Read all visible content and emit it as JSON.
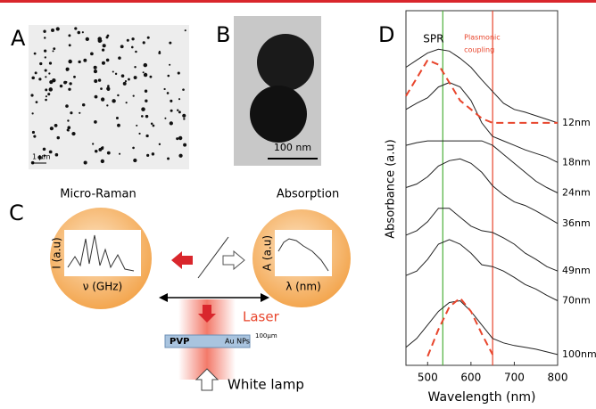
{
  "panels": {
    "a": {
      "label": "A",
      "scale_bar": "1 µm"
    },
    "b": {
      "label": "B",
      "scale_bar": "100 nm"
    },
    "c": {
      "label": "C",
      "raman": {
        "title": "Micro-Raman",
        "y_label": "I (a.u)",
        "x_label": "ν (GHz)"
      },
      "absorption": {
        "title": "Absorption",
        "y_label": "A (a.u)",
        "x_label": "λ (nm)"
      },
      "laser": "Laser",
      "pvp": "PVP",
      "nps": "Au NPs",
      "thickness": "100µm",
      "lamp": "White lamp"
    },
    "d": {
      "label": "D"
    }
  },
  "chart_data": {
    "type": "line",
    "x_label": "Wavelength (nm)",
    "y_label": "Absorbance (a.u)",
    "x": [
      450,
      475,
      500,
      525,
      550,
      575,
      600,
      625,
      650,
      675,
      700,
      725,
      750,
      775,
      800
    ],
    "xlim": [
      450,
      800
    ],
    "xticks": [
      500,
      600,
      700,
      800
    ],
    "ylim": [
      0,
      395
    ],
    "series": [
      {
        "name": "12nm",
        "color": "#222222",
        "values": [
          332,
          340,
          348,
          352,
          350,
          342,
          332,
          318,
          305,
          292,
          285,
          282,
          278,
          274,
          270
        ]
      },
      {
        "name": "18nm",
        "color": "#222222",
        "values": [
          285,
          292,
          298,
          310,
          315,
          310,
          295,
          270,
          255,
          250,
          245,
          240,
          236,
          232,
          226
        ]
      },
      {
        "name": "24nm",
        "color": "#222222",
        "values": [
          245,
          248,
          250,
          250,
          250,
          250,
          250,
          250,
          245,
          235,
          225,
          215,
          205,
          198,
          192
        ]
      },
      {
        "name": "36nm",
        "color": "#222222",
        "values": [
          198,
          202,
          210,
          222,
          228,
          230,
          225,
          215,
          200,
          190,
          182,
          178,
          172,
          165,
          158
        ]
      },
      {
        "name": "49nm",
        "color": "#222222",
        "values": [
          145,
          150,
          160,
          175,
          175,
          165,
          155,
          150,
          148,
          142,
          135,
          125,
          118,
          110,
          105
        ]
      },
      {
        "name": "70nm",
        "color": "#222222",
        "values": [
          100,
          105,
          118,
          135,
          140,
          135,
          125,
          112,
          110,
          105,
          98,
          90,
          85,
          78,
          72
        ]
      },
      {
        "name": "100nm",
        "color": "#222222",
        "values": [
          20,
          30,
          45,
          60,
          70,
          72,
          60,
          45,
          30,
          25,
          22,
          20,
          18,
          15,
          12
        ]
      },
      {
        "color": "#e8452c",
        "dashed": true,
        "values": [
          300,
          320,
          340,
          335,
          315,
          295,
          285,
          275,
          270,
          270,
          270,
          270,
          270,
          270,
          270
        ]
      },
      {
        "color": "#e8452c",
        "dashed": true,
        "values": [
          null,
          null,
          10,
          40,
          65,
          75,
          60,
          35,
          12,
          null,
          null,
          null,
          null,
          null,
          null
        ]
      }
    ],
    "markers": [
      {
        "x": 535,
        "label": "SPR",
        "color": "#4caf3a"
      },
      {
        "x": 650,
        "lines": [
          "Plasmonic",
          "coupling"
        ],
        "color": "#e8452c"
      }
    ]
  }
}
